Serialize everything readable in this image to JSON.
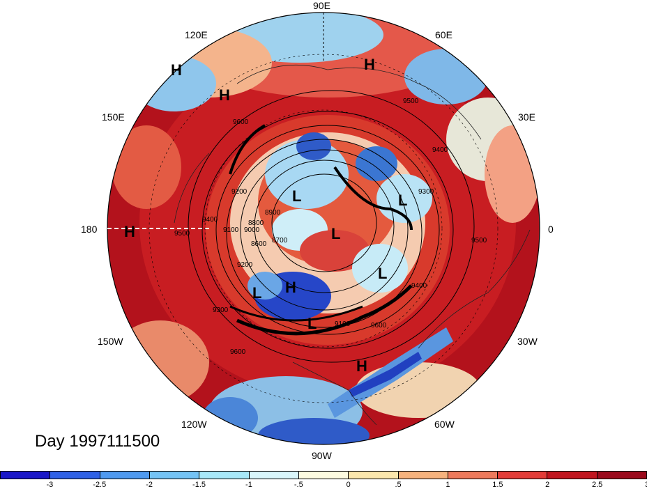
{
  "caption": "Day 1997111500",
  "longitude_labels": [
    "90E",
    "60E",
    "30E",
    "0",
    "30W",
    "60W",
    "90W",
    "120W",
    "150W",
    "180",
    "150E",
    "120E"
  ],
  "pressure_centers": [
    "H",
    "H",
    "H",
    "H",
    "H",
    "H",
    "L",
    "L",
    "L",
    "L",
    "L",
    "L"
  ],
  "contour_labels": [
    "9600",
    "9500",
    "9400",
    "9300",
    "9200",
    "9100",
    "9000",
    "8900",
    "8800",
    "8700",
    "8600",
    "9600",
    "9500",
    "9400",
    "9300",
    "9200",
    "9100",
    "9600",
    "9500",
    "9400"
  ],
  "colorbar": {
    "ticks": [
      "-3",
      "-2.5",
      "-2",
      "-1.5",
      "-1",
      "-.5",
      "0",
      ".5",
      "1",
      "1.5",
      "2",
      "2.5",
      "3"
    ],
    "colors": [
      "#1a17c8",
      "#2f61e6",
      "#4f9af0",
      "#74c3f5",
      "#a8e8f8",
      "#d9f6fb",
      "#fdfbe0",
      "#fbe7ad",
      "#f6b27d",
      "#ee7a5c",
      "#e33c38",
      "#c1151f",
      "#9b0a1c"
    ]
  },
  "map_colors": {
    "outer": "#a50f15",
    "ring": "#d7301f",
    "warm": "#ef6548",
    "cold": "#2166ac",
    "neutral": "#f7f7e8"
  }
}
